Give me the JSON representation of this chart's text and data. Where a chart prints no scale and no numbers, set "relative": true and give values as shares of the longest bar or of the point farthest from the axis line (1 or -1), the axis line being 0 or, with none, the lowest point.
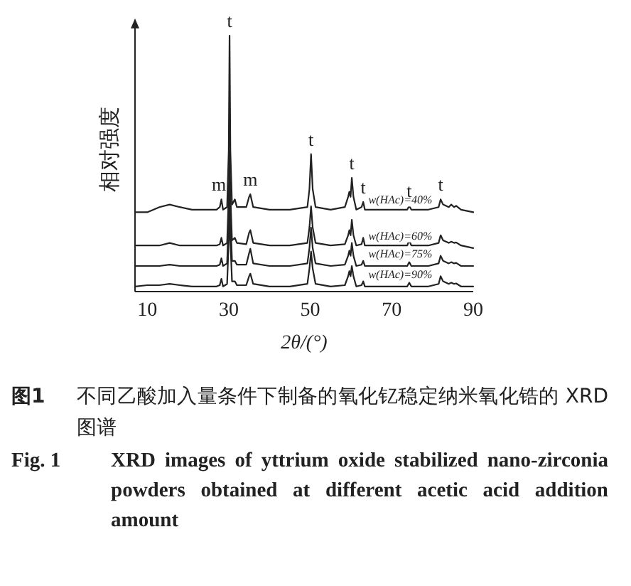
{
  "chart_data": {
    "type": "line",
    "relative": true,
    "xlabel": "2θ/(°)",
    "ylabel": "相对强度",
    "xlim": [
      7,
      90
    ],
    "xticks": [
      10,
      30,
      50,
      70,
      90
    ],
    "x": [
      7,
      10,
      13,
      15.5,
      18,
      21,
      24,
      27,
      27.8,
      28.2,
      28.6,
      29.6,
      30.0,
      30.2,
      30.4,
      30.8,
      31.5,
      32,
      34.3,
      35.0,
      35.3,
      36,
      40,
      45,
      49.3,
      49.8,
      50.2,
      50.6,
      51.3,
      55,
      58.5,
      59.3,
      59.6,
      59.9,
      60.2,
      60.6,
      61.3,
      62.6,
      63,
      63.4,
      68,
      73.8,
      74.3,
      74.8,
      79,
      81.5,
      82,
      82.6,
      84,
      84.6,
      85.3,
      85.8,
      87,
      90
    ],
    "series": [
      {
        "name": "w(HAc)=90%",
        "color": "#222222",
        "values": [
          0.02,
          0.025,
          0.025,
          0.03,
          0.025,
          0.02,
          0.02,
          0.02,
          0.025,
          0.05,
          0.02,
          0.03,
          0.2,
          0.35,
          0.2,
          0.04,
          0.04,
          0.025,
          0.025,
          0.06,
          0.07,
          0.03,
          0.02,
          0.02,
          0.03,
          0.09,
          0.157,
          0.09,
          0.03,
          0.02,
          0.025,
          0.06,
          0.08,
          0.06,
          0.1,
          0.06,
          0.02,
          0.025,
          0.04,
          0.02,
          0.02,
          0.02,
          0.035,
          0.02,
          0.02,
          0.03,
          0.06,
          0.04,
          0.03,
          0.035,
          0.03,
          0.032,
          0.02,
          0.02
        ]
      },
      {
        "name": "w(HAc)=75%",
        "color": "#222222",
        "values": [
          0.1,
          0.1,
          0.1,
          0.105,
          0.1,
          0.1,
          0.1,
          0.1,
          0.105,
          0.13,
          0.1,
          0.11,
          0.3,
          0.45,
          0.3,
          0.12,
          0.12,
          0.105,
          0.105,
          0.15,
          0.167,
          0.11,
          0.1,
          0.1,
          0.11,
          0.17,
          0.25,
          0.17,
          0.11,
          0.1,
          0.105,
          0.14,
          0.16,
          0.14,
          0.19,
          0.14,
          0.1,
          0.105,
          0.12,
          0.1,
          0.1,
          0.1,
          0.115,
          0.1,
          0.1,
          0.11,
          0.14,
          0.12,
          0.11,
          0.115,
          0.11,
          0.112,
          0.1,
          0.1
        ]
      },
      {
        "name": "w(HAc)=60%",
        "color": "#222222",
        "values": [
          0.18,
          0.18,
          0.18,
          0.19,
          0.18,
          0.18,
          0.18,
          0.18,
          0.185,
          0.21,
          0.18,
          0.19,
          0.38,
          0.55,
          0.38,
          0.2,
          0.21,
          0.19,
          0.185,
          0.23,
          0.24,
          0.19,
          0.18,
          0.18,
          0.19,
          0.25,
          0.333,
          0.25,
          0.19,
          0.18,
          0.185,
          0.22,
          0.24,
          0.22,
          0.28,
          0.22,
          0.18,
          0.185,
          0.21,
          0.18,
          0.18,
          0.18,
          0.2,
          0.18,
          0.18,
          0.19,
          0.22,
          0.2,
          0.19,
          0.195,
          0.19,
          0.192,
          0.18,
          0.17
        ]
      },
      {
        "name": "w(HAc)=40%",
        "color": "#222222",
        "values": [
          0.31,
          0.31,
          0.33,
          0.34,
          0.33,
          0.32,
          0.32,
          0.32,
          0.33,
          0.36,
          0.32,
          0.33,
          0.55,
          1.0,
          0.55,
          0.34,
          0.36,
          0.33,
          0.33,
          0.37,
          0.38,
          0.33,
          0.32,
          0.32,
          0.33,
          0.4,
          0.537,
          0.4,
          0.33,
          0.32,
          0.33,
          0.37,
          0.39,
          0.37,
          0.444,
          0.37,
          0.32,
          0.33,
          0.35,
          0.32,
          0.32,
          0.32,
          0.335,
          0.32,
          0.32,
          0.33,
          0.36,
          0.34,
          0.33,
          0.34,
          0.33,
          0.335,
          0.32,
          0.31
        ]
      }
    ],
    "annotations": [
      {
        "text": "m",
        "x": 27.6,
        "y": 0.36
      },
      {
        "text": "t",
        "x": 30.2,
        "y": 1.0
      },
      {
        "text": "m",
        "x": 35.3,
        "y": 0.38
      },
      {
        "text": "t",
        "x": 50.2,
        "y": 0.537
      },
      {
        "text": "t",
        "x": 60.2,
        "y": 0.444
      },
      {
        "text": "t",
        "x": 63,
        "y": 0.35
      },
      {
        "text": "t",
        "x": 74.3,
        "y": 0.335
      },
      {
        "text": "t",
        "x": 82,
        "y": 0.36
      },
      "图1  不同乙酸加入量条件下制备的氧化钇稳定纳米氧化锆的 XRD 图谱",
      "Fig. 1  XRD images of yttrium oxide stabilized nano-zirconia powders obtained at different acetic acid addition amount"
    ]
  }
}
